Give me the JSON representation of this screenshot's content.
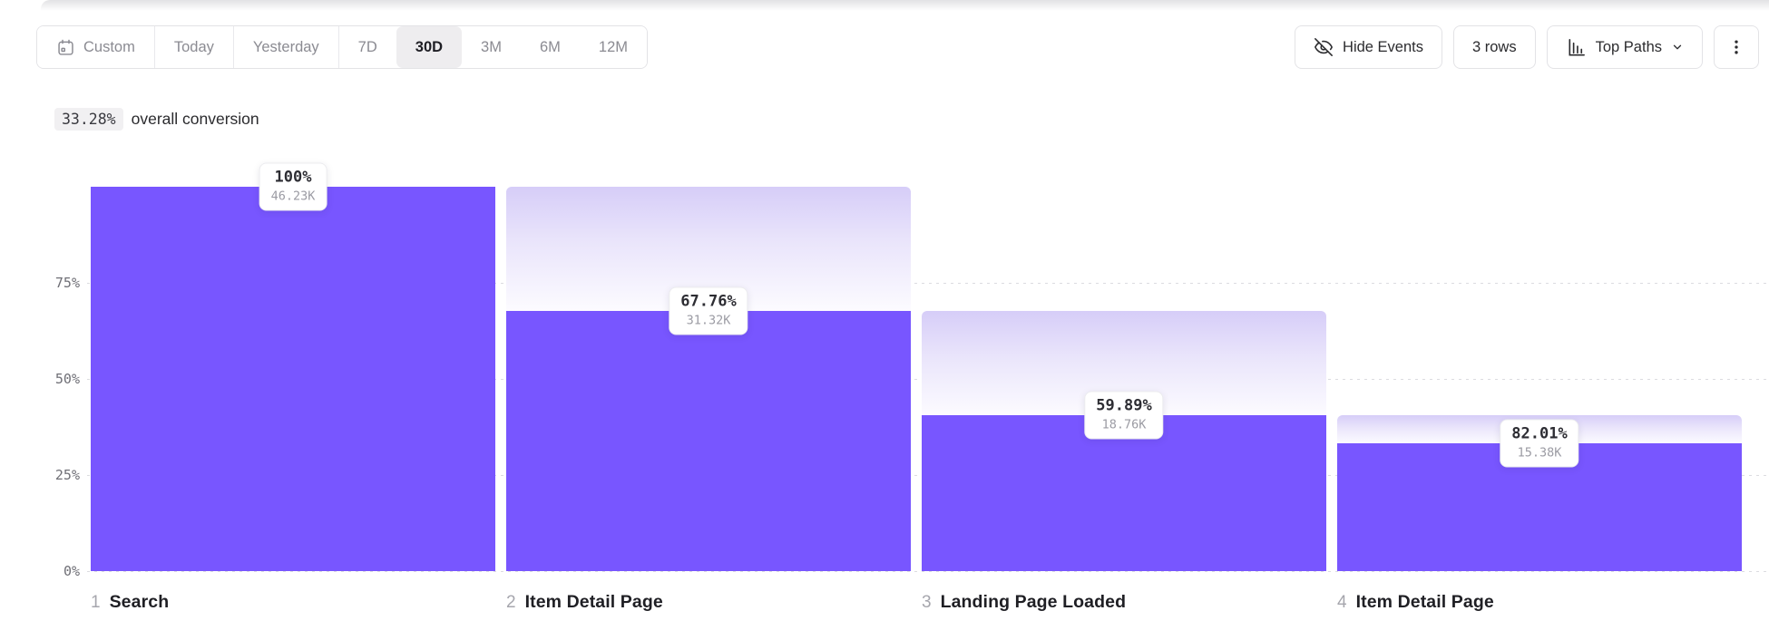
{
  "toolbar": {
    "date_ranges": [
      {
        "label": "Custom",
        "icon": "calendar-icon",
        "active": false,
        "divided": true
      },
      {
        "label": "Today",
        "active": false,
        "divided": true
      },
      {
        "label": "Yesterday",
        "active": false,
        "divided": true
      },
      {
        "label": "7D",
        "active": false,
        "divided": false
      },
      {
        "label": "30D",
        "active": true,
        "divided": false
      },
      {
        "label": "3M",
        "active": false,
        "divided": false
      },
      {
        "label": "6M",
        "active": false,
        "divided": false
      },
      {
        "label": "12M",
        "active": false,
        "divided": false
      }
    ],
    "hide_events_label": "Hide Events",
    "rows_label": "3 rows",
    "top_paths_label": "Top Paths"
  },
  "summary": {
    "value": "33.28%",
    "suffix": "overall conversion"
  },
  "chart_data": {
    "type": "bar",
    "subtype": "funnel",
    "title": "33.28% overall conversion",
    "ylabel": "",
    "xlabel": "",
    "ylim": [
      0,
      100
    ],
    "y_ticks_pct": [
      75,
      50,
      25,
      0
    ],
    "grid": "dotted-horizontal",
    "legend": "none",
    "steps": [
      {
        "index": 1,
        "name": "Search",
        "conversion_label": "100%",
        "count_label": "46.23K",
        "count_k": 46.23,
        "pct_of_total": 100.0
      },
      {
        "index": 2,
        "name": "Item Detail Page",
        "conversion_label": "67.76%",
        "count_label": "31.32K",
        "count_k": 31.32,
        "pct_of_total": 67.75
      },
      {
        "index": 3,
        "name": "Landing Page Loaded",
        "conversion_label": "59.89%",
        "count_label": "18.76K",
        "count_k": 18.76,
        "pct_of_total": 40.58
      },
      {
        "index": 4,
        "name": "Item Detail Page",
        "conversion_label": "82.01%",
        "count_label": "15.38K",
        "count_k": 15.38,
        "pct_of_total": 33.27
      }
    ],
    "colors": {
      "bar": "#7856FF",
      "loss_gradient_top": "#d6cdf8",
      "loss_gradient_bottom": "#fcfbff",
      "gridline": "#dcdce0",
      "tick_text": "#6f6f76"
    }
  }
}
